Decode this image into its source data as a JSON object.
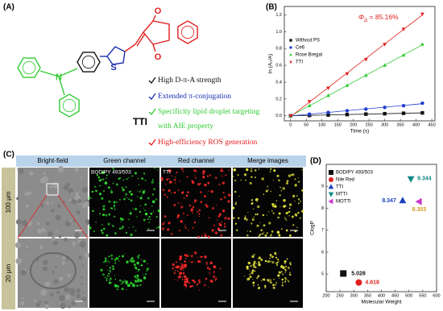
{
  "panel_labels": [
    "(A)",
    "(B)",
    "(C)",
    "(D)"
  ],
  "panel_a": {
    "atoms": [
      "O",
      "O",
      "S",
      "N"
    ],
    "compound": "TTI",
    "features": [
      "High D-π-A strength",
      "Extended π-conjugation",
      "Specificity lipid droplet targeting",
      "with AIE property",
      "High-efficiency ROS generation"
    ]
  },
  "panel_c": {
    "columns": [
      "Bright-field",
      "Green channel",
      "Red channel",
      "Merge images"
    ],
    "rows": [
      "100 μm",
      "20 μm"
    ],
    "image_labels": [
      "BODIPY 493/503",
      "TTI"
    ]
  },
  "chart_data": [
    {
      "type": "scatter",
      "trendline": true,
      "xlabel": "Time (s)",
      "ylabel": "ln (A₀/A)",
      "annotation": {
        "symbol": "Φ",
        "subscript": "Δ",
        "text": " = 85.16%"
      },
      "x": [
        0,
        60,
        120,
        180,
        240,
        300,
        360,
        420
      ],
      "series": [
        {
          "name": "Without PS",
          "color": "#111111",
          "marker": "square",
          "values": [
            0,
            0.005,
            0.01,
            0.015,
            0.02,
            0.025,
            0.03,
            0.035
          ]
        },
        {
          "name": "Ce6",
          "color": "#1f3fd0",
          "marker": "circle",
          "values": [
            0,
            0.02,
            0.04,
            0.06,
            0.08,
            0.1,
            0.12,
            0.15
          ]
        },
        {
          "name": "Rose Bregal",
          "color": "#33cc33",
          "marker": "triangle-up",
          "values": [
            0,
            0.12,
            0.24,
            0.36,
            0.48,
            0.6,
            0.72,
            0.85
          ]
        },
        {
          "name": "TTI",
          "color": "#e02020",
          "marker": "triangle-down",
          "values": [
            0,
            0.17,
            0.33,
            0.5,
            0.67,
            0.85,
            1.03,
            1.21
          ]
        }
      ],
      "xlim": [
        -20,
        460
      ],
      "ylim": [
        -0.06,
        1.3
      ],
      "xticks": [
        0,
        50,
        100,
        150,
        200,
        250,
        300,
        350,
        400,
        450
      ],
      "yticks": [
        {
          "value": 0,
          "label": "0.0"
        },
        {
          "value": 0.2,
          "label": "0.2"
        },
        {
          "value": 0.4,
          "label": "0.4"
        },
        {
          "value": 0.6,
          "label": "0.6"
        },
        {
          "value": 0.8,
          "label": "0.8"
        },
        {
          "value": 1,
          "label": "1.0"
        },
        {
          "value": 1.2,
          "label": "1.2"
        }
      ],
      "legend": "center left"
    },
    {
      "type": "scatter",
      "point_labels": true,
      "xlabel": "Molecular Weight",
      "ylabel": "ClogP",
      "series": [
        {
          "name": "BODIPY 493/503",
          "color": "#111111",
          "marker": "square",
          "x": [
            262
          ],
          "values": [
            5.028
          ]
        },
        {
          "name": "Nile Red",
          "color": "#e02020",
          "marker": "circle",
          "x": [
            318
          ],
          "values": [
            4.618
          ]
        },
        {
          "name": "TTI",
          "color": "#1a3fc0",
          "marker": "triangle-up",
          "x": [
            477
          ],
          "values": [
            8.347
          ]
        },
        {
          "name": "MTTI",
          "color": "#138a8a",
          "marker": "triangle-down",
          "x": [
            507
          ],
          "values": [
            9.344
          ]
        },
        {
          "name": "MOTTI",
          "color": "#cc33cc",
          "label_color": "#d49a1a",
          "marker": "triangle-left",
          "x": [
            537
          ],
          "values": [
            8.303
          ]
        }
      ],
      "xlim": [
        200,
        600
      ],
      "ylim": [
        4.2,
        10
      ],
      "xticks": [
        200,
        250,
        300,
        350,
        400,
        450,
        500,
        550,
        600
      ],
      "yticks": [
        5,
        6,
        7,
        8,
        9
      ],
      "legend": "upper left"
    }
  ]
}
